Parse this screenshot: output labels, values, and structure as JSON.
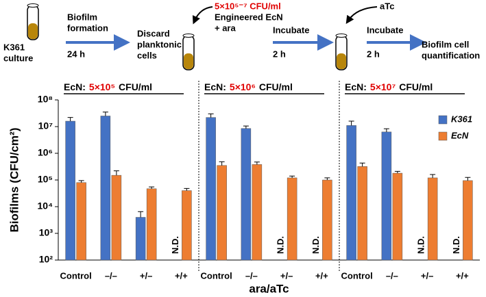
{
  "diagram": {
    "start": [
      "K361",
      "culture"
    ],
    "step1": [
      "Biofilm",
      "formation"
    ],
    "step1_time": "24 h",
    "step2": [
      "Discard",
      "planktonic",
      "cells"
    ],
    "dose": "5×10⁵⁻⁷ CFU/ml",
    "addition": [
      "Engineered EcN",
      "+ ara"
    ],
    "step3": "Incubate",
    "step3_time": "2 h",
    "inducer": "aTc",
    "step4": "Incubate",
    "step4_time": "2 h",
    "end": [
      "Biofilm cell",
      "quantification"
    ]
  },
  "chart_data": {
    "type": "bar",
    "y_label": "Biofilms (CFU/cm²)",
    "x_label": "ara/aTc",
    "log_scale": true,
    "groups": [
      {
        "prefix": "EcN:",
        "dose": "5×10⁵",
        "unit": "CFU/ml"
      },
      {
        "prefix": "EcN:",
        "dose": "5×10⁶",
        "unit": "CFU/ml"
      },
      {
        "prefix": "EcN:",
        "dose": "5×10⁷",
        "unit": "CFU/ml"
      }
    ],
    "categories": [
      "Control",
      "–/–",
      "+/–",
      "+/+",
      "Control",
      "–/–",
      "+/–",
      "+/+",
      "Control",
      "–/–",
      "+/–",
      "+/+"
    ],
    "series": [
      {
        "name": "K361",
        "color": "#4472c4",
        "values": [
          16000000,
          25000000,
          4000,
          null,
          22000000,
          8500000,
          null,
          null,
          11000000,
          6300000,
          null,
          null
        ],
        "errors": [
          6000000,
          10000000,
          2500,
          null,
          8000000,
          2000000,
          null,
          null,
          5000000,
          2000000,
          null,
          null
        ],
        "value_labels": [
          null,
          null,
          null,
          "N.D.",
          null,
          null,
          "N.D.",
          "N.D.",
          null,
          null,
          "N.D.",
          "N.D."
        ]
      },
      {
        "name": "EcN",
        "color": "#ed7d31",
        "values": [
          80000,
          150000,
          47000,
          40000,
          350000,
          380000,
          120000,
          100000,
          320000,
          180000,
          120000,
          95000
        ],
        "errors": [
          15000,
          70000,
          8000,
          8000,
          130000,
          90000,
          20000,
          20000,
          110000,
          30000,
          40000,
          30000
        ]
      }
    ],
    "ylim": [
      100,
      100000000
    ],
    "yticks": [
      {
        "value": 100,
        "label": "10²"
      },
      {
        "value": 1000,
        "label": "10³"
      },
      {
        "value": 10000,
        "label": "10⁴"
      },
      {
        "value": 100000,
        "label": "10⁵"
      },
      {
        "value": 1000000,
        "label": "10⁶"
      },
      {
        "value": 10000000,
        "label": "10⁷"
      },
      {
        "value": 100000000,
        "label": "10⁸"
      }
    ],
    "grid": false,
    "legend": "top-right"
  }
}
